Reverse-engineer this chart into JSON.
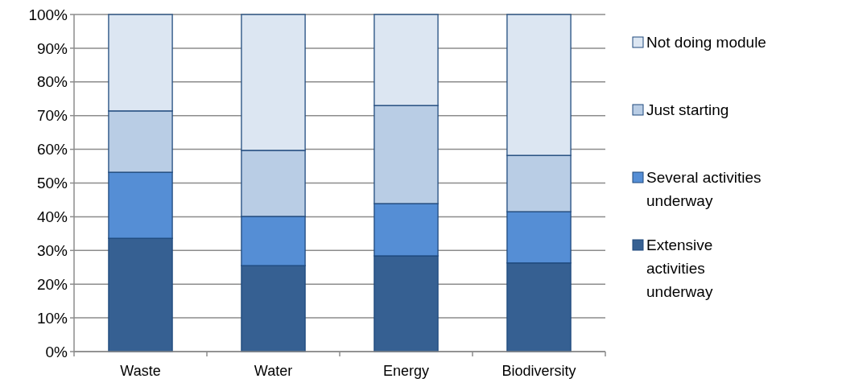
{
  "chart_data": {
    "type": "bar",
    "stacked": true,
    "categories": [
      "Waste",
      "Water",
      "Energy",
      "Biodiversity"
    ],
    "series": [
      {
        "name": "Extensive activities underway",
        "color": "#366092",
        "values": [
          33.6,
          25.5,
          28.4,
          26.3
        ]
      },
      {
        "name": "Several activities underway",
        "color": "#558ed5",
        "values": [
          19.6,
          14.6,
          15.5,
          15.2
        ]
      },
      {
        "name": "Just starting",
        "color": "#b9cde5",
        "values": [
          18.2,
          19.6,
          29.1,
          16.7
        ]
      },
      {
        "name": "Not doing module",
        "color": "#dce6f2",
        "values": [
          28.6,
          40.3,
          27.0,
          41.8
        ]
      }
    ],
    "ylim": [
      0,
      100
    ],
    "yticks": [
      {
        "value": 0,
        "label": "0%"
      },
      {
        "value": 10,
        "label": "10%"
      },
      {
        "value": 20,
        "label": "20%"
      },
      {
        "value": 30,
        "label": "30%"
      },
      {
        "value": 40,
        "label": "40%"
      },
      {
        "value": 50,
        "label": "50%"
      },
      {
        "value": 60,
        "label": "60%"
      },
      {
        "value": 70,
        "label": "70%"
      },
      {
        "value": 80,
        "label": "80%"
      },
      {
        "value": 90,
        "label": "90%"
      },
      {
        "value": 100,
        "label": "100%"
      }
    ],
    "grid": "y",
    "legend": "right"
  }
}
